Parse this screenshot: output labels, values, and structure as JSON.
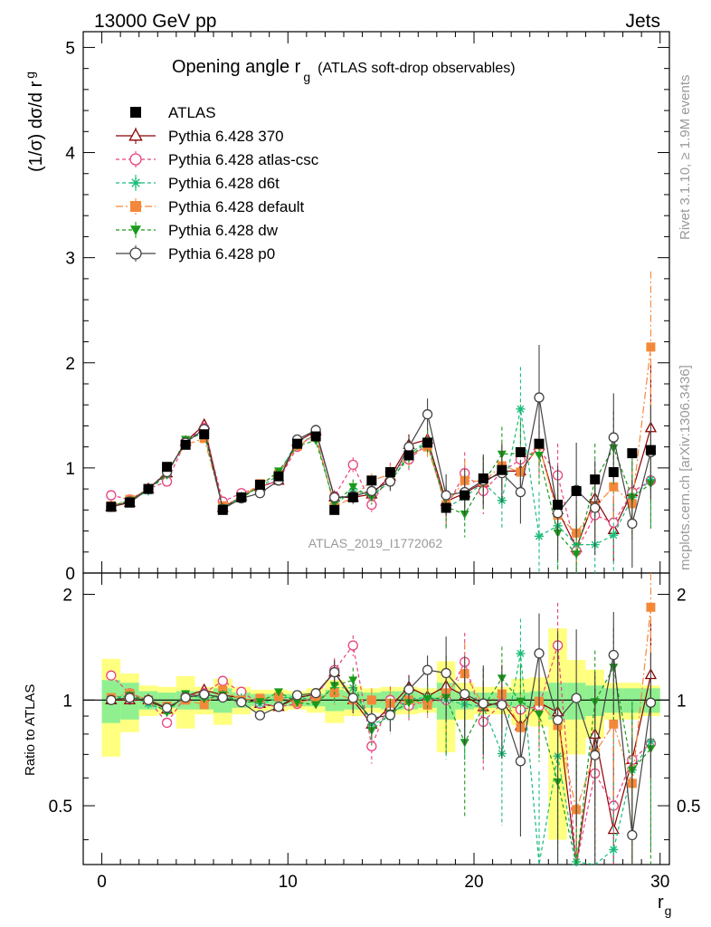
{
  "header": {
    "left": "13000 GeV pp",
    "right": "Jets"
  },
  "side_text": {
    "rivet": "Rivet 3.1.10, ≥ 1.9M events",
    "mcplots": "mcplots.cern.ch [arXiv:1306.3436]"
  },
  "chart_data": {
    "type": "scatter",
    "title_main": "Opening angle r",
    "title_sub": "g",
    "title_rest": "(ATLAS soft-drop observables)",
    "analysis_label": "ATLAS_2019_I1772062",
    "ylabel_main": "(1/σ) dσ/d r",
    "ylabel_sub": "g",
    "ratio_ylabel": "Ratio to ATLAS",
    "xlabel_main": "r",
    "xlabel_sub": "g",
    "xlim": [
      -1,
      30.5
    ],
    "ylim": [
      0,
      5.15
    ],
    "ratio_ylim": [
      0.34,
      2.3
    ],
    "x_ticks": [
      0,
      10,
      20,
      30
    ],
    "y_ticks": [
      0,
      1,
      2,
      3,
      4,
      5
    ],
    "ratio_ticks": [
      0.5,
      1,
      2
    ],
    "x": [
      0.5,
      1.5,
      2.5,
      3.5,
      4.5,
      5.5,
      6.5,
      7.5,
      8.5,
      9.5,
      10.5,
      11.5,
      12.5,
      13.5,
      14.5,
      15.5,
      16.5,
      17.5,
      18.5,
      19.5,
      20.5,
      21.5,
      22.5,
      23.5,
      24.5,
      25.5,
      26.5,
      27.5,
      28.5,
      29.5
    ],
    "data": {
      "name": "ATLAS",
      "values": [
        0.63,
        0.67,
        0.8,
        1.01,
        1.22,
        1.32,
        0.6,
        0.72,
        0.84,
        0.92,
        1.23,
        1.3,
        0.6,
        0.72,
        0.88,
        0.96,
        1.12,
        1.24,
        0.62,
        0.74,
        0.9,
        0.98,
        1.15,
        1.23,
        0.65,
        0.78,
        0.89,
        0.96,
        1.14,
        1.17
      ],
      "ratio_band_inner": [
        0.14,
        0.12,
        0.06,
        0.05,
        0.06,
        0.06,
        0.08,
        0.05,
        0.04,
        0.04,
        0.04,
        0.04,
        0.07,
        0.06,
        0.05,
        0.06,
        0.06,
        0.05,
        0.12,
        0.06,
        0.05,
        0.05,
        0.05,
        0.06,
        0.12,
        0.12,
        0.1,
        0.08,
        0.08,
        0.08
      ],
      "ratio_band_outer": [
        0.31,
        0.19,
        0.1,
        0.09,
        0.17,
        0.09,
        0.15,
        0.09,
        0.07,
        0.07,
        0.06,
        0.08,
        0.14,
        0.1,
        0.08,
        0.09,
        0.09,
        0.08,
        0.29,
        0.12,
        0.09,
        0.09,
        0.15,
        0.16,
        0.6,
        0.3,
        0.22,
        0.12,
        0.12,
        0.1
      ]
    },
    "series": [
      {
        "name": "Pythia 6.428 370",
        "color": "#8b0000",
        "marker": "triangle-open",
        "dash": "",
        "values": [
          0.63,
          0.67,
          0.8,
          0.95,
          1.25,
          1.41,
          0.62,
          0.73,
          0.82,
          0.88,
          1.25,
          1.35,
          0.72,
          0.72,
          0.75,
          0.92,
          1.22,
          1.27,
          0.68,
          0.76,
          0.86,
          0.97,
          0.97,
          1.21,
          0.6,
          0.24,
          0.71,
          0.41,
          0.77,
          1.38
        ],
        "err": [
          0.02,
          0.02,
          0.02,
          0.02,
          0.02,
          0.03,
          0.02,
          0.02,
          0.02,
          0.02,
          0.03,
          0.03,
          0.05,
          0.06,
          0.07,
          0.08,
          0.1,
          0.11,
          0.12,
          0.14,
          0.15,
          0.15,
          0.18,
          0.2,
          0.25,
          0.25,
          0.25,
          0.3,
          0.3,
          0.6
        ]
      },
      {
        "name": "Pythia 6.428 atlas-csc",
        "color": "#e8417f",
        "marker": "circle-open",
        "dash": "4,3",
        "values": [
          0.74,
          0.7,
          0.8,
          0.87,
          1.25,
          1.38,
          0.68,
          0.76,
          0.82,
          0.88,
          1.2,
          1.33,
          0.73,
          1.03,
          0.65,
          0.96,
          1.08,
          1.23,
          0.62,
          0.95,
          0.78,
          0.96,
          1.08,
          1.18,
          0.93,
          0.21,
          0.55,
          0.48,
          0.77,
          0.88
        ],
        "err": [
          0.02,
          0.02,
          0.02,
          0.02,
          0.02,
          0.03,
          0.02,
          0.02,
          0.02,
          0.02,
          0.03,
          0.03,
          0.06,
          0.07,
          0.07,
          0.09,
          0.1,
          0.11,
          0.18,
          0.2,
          0.22,
          0.22,
          0.25,
          0.28,
          0.3,
          0.3,
          0.3,
          0.32,
          0.32,
          0.45
        ]
      },
      {
        "name": "Pythia 6.428 d6t",
        "color": "#1abc7a",
        "marker": "star",
        "dash": "4,3",
        "values": [
          0.64,
          0.69,
          0.78,
          0.94,
          1.26,
          1.34,
          0.61,
          0.73,
          0.82,
          0.93,
          1.26,
          1.29,
          0.65,
          0.78,
          0.75,
          0.86,
          1.13,
          1.26,
          0.62,
          0.72,
          0.86,
          0.69,
          1.56,
          0.35,
          0.45,
          0.27,
          0.27,
          0.36,
          0.72,
          0.89
        ],
        "err": [
          0.02,
          0.02,
          0.02,
          0.02,
          0.02,
          0.03,
          0.02,
          0.02,
          0.02,
          0.02,
          0.03,
          0.03,
          0.06,
          0.07,
          0.07,
          0.09,
          0.1,
          0.11,
          0.2,
          0.22,
          0.25,
          0.26,
          0.4,
          0.42,
          0.42,
          0.42,
          0.42,
          0.42,
          0.42,
          0.45
        ]
      },
      {
        "name": "Pythia 6.428 default",
        "color": "#f4883a",
        "marker": "square",
        "dash": "8,3,2,3",
        "values": [
          0.64,
          0.7,
          0.8,
          0.97,
          1.22,
          1.28,
          0.64,
          0.72,
          0.85,
          0.94,
          1.21,
          1.31,
          0.63,
          0.72,
          0.88,
          0.94,
          1.12,
          1.2,
          0.65,
          0.88,
          0.87,
          1.02,
          0.96,
          1.22,
          0.55,
          0.38,
          0.63,
          0.82,
          0.66,
          2.15
        ],
        "err": [
          0.02,
          0.02,
          0.02,
          0.02,
          0.02,
          0.03,
          0.02,
          0.02,
          0.02,
          0.02,
          0.03,
          0.03,
          0.06,
          0.07,
          0.07,
          0.09,
          0.1,
          0.11,
          0.18,
          0.2,
          0.22,
          0.22,
          0.25,
          0.28,
          0.3,
          0.3,
          0.3,
          0.32,
          0.32,
          0.72
        ]
      },
      {
        "name": "Pythia 6.428 dw",
        "color": "#1a9a1a",
        "marker": "triangle-down",
        "dash": "4,3",
        "values": [
          0.63,
          0.69,
          0.8,
          0.93,
          1.27,
          1.33,
          0.62,
          0.71,
          0.83,
          0.97,
          1.21,
          1.26,
          0.66,
          0.82,
          0.72,
          0.88,
          1.1,
          1.25,
          0.63,
          0.56,
          0.86,
          1.13,
          1.14,
          1.12,
          0.38,
          0.18,
          0.88,
          1.19,
          0.72,
          0.85
        ],
        "err": [
          0.02,
          0.02,
          0.02,
          0.02,
          0.02,
          0.03,
          0.02,
          0.02,
          0.02,
          0.02,
          0.03,
          0.03,
          0.06,
          0.07,
          0.07,
          0.09,
          0.1,
          0.11,
          0.2,
          0.22,
          0.25,
          0.26,
          0.3,
          0.3,
          0.35,
          0.35,
          0.35,
          0.35,
          0.4,
          0.45
        ]
      },
      {
        "name": "Pythia 6.428 p0",
        "color": "#444444",
        "marker": "circle-open",
        "dash": "",
        "values": [
          0.63,
          0.68,
          0.8,
          0.96,
          1.24,
          1.37,
          0.61,
          0.71,
          0.76,
          0.88,
          1.27,
          1.36,
          0.72,
          0.73,
          0.78,
          0.87,
          1.2,
          1.51,
          0.74,
          0.77,
          0.88,
          0.95,
          0.77,
          1.67,
          0.57,
          0.79,
          0.62,
          1.29,
          0.47,
          1.15
        ],
        "err": [
          0.02,
          0.02,
          0.02,
          0.02,
          0.02,
          0.03,
          0.02,
          0.02,
          0.02,
          0.02,
          0.03,
          0.03,
          0.06,
          0.07,
          0.07,
          0.09,
          0.1,
          0.15,
          0.2,
          0.22,
          0.25,
          0.28,
          0.3,
          0.5,
          0.45,
          0.45,
          0.45,
          0.42,
          0.42,
          0.45
        ]
      }
    ]
  }
}
